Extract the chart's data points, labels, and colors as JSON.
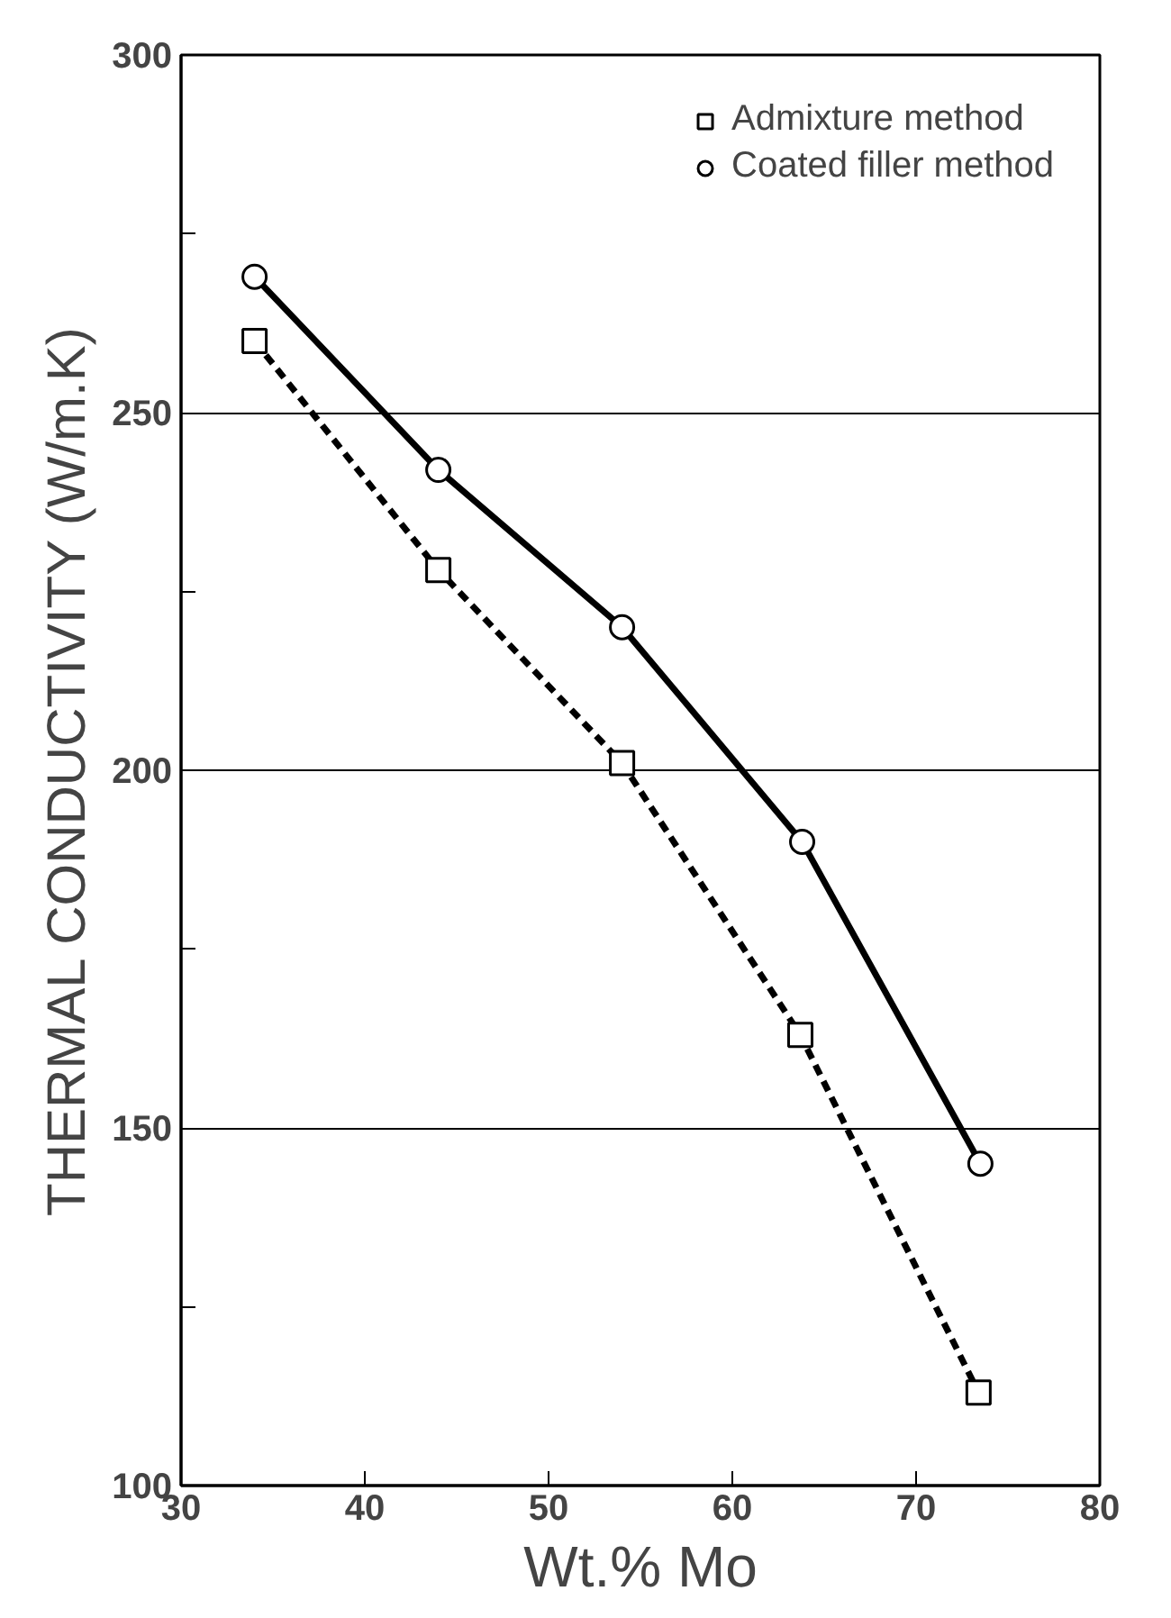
{
  "chart_data": {
    "type": "line",
    "xlabel": "Wt.% Mo",
    "ylabel": "THERMAL CONDUCTIVITY (W/m.K)",
    "xlim": [
      30,
      80
    ],
    "ylim": [
      100,
      300
    ],
    "xticks": [
      30,
      40,
      50,
      60,
      70,
      80
    ],
    "yticks": [
      100,
      {
        "value": 125,
        "label": null
      },
      150,
      {
        "value": 175,
        "label": null
      },
      200,
      {
        "value": 225,
        "label": null
      },
      250,
      {
        "value": 275,
        "label": null
      },
      300
    ],
    "grid": "y",
    "legend": "top right",
    "series": [
      {
        "name": "Admixture method",
        "color": "#000000",
        "marker": "square",
        "line_style": "dashed",
        "x": [
          34,
          44,
          54,
          63.7,
          73.4
        ],
        "values": [
          260,
          228,
          201,
          163,
          113
        ]
      },
      {
        "name": "Coated filler method",
        "color": "#000000",
        "marker": "circle",
        "line_style": "solid",
        "x": [
          34,
          44,
          54,
          63.8,
          73.5
        ],
        "values": [
          269,
          242,
          220,
          190,
          145
        ]
      }
    ]
  }
}
